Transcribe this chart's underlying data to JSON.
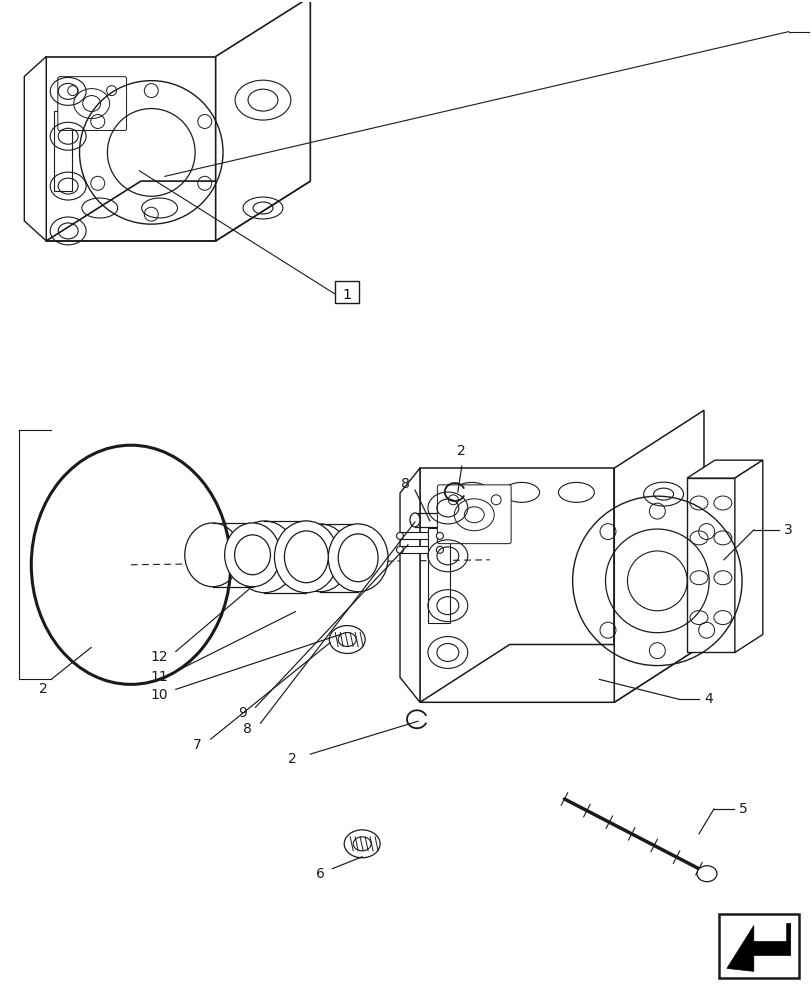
{
  "bg_color": "#ffffff",
  "line_color": "#1a1a1a",
  "lw": 1.0,
  "fig_w": 8.12,
  "fig_h": 10.0,
  "dpi": 100
}
